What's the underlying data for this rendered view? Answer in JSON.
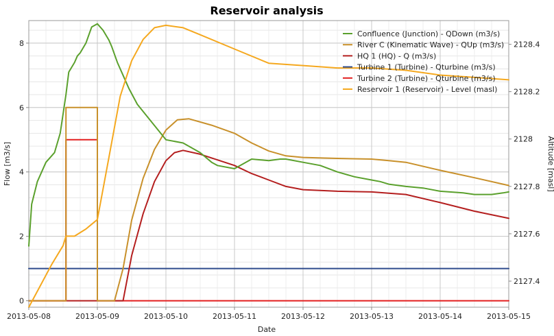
{
  "chart_data": {
    "type": "line",
    "title": "Reservoir analysis",
    "xlabel": "Date",
    "ylabel_left": "Flow [m3/s]",
    "ylabel_right": "Altitude [masl]",
    "x_ticks": [
      "2013-05-08",
      "2013-05-09",
      "2013-05-10",
      "2013-05-11",
      "2013-05-12",
      "2013-05-13",
      "2013-05-14",
      "2013-05-15"
    ],
    "x_range": [
      "2013-05-08",
      "2013-05-15"
    ],
    "y_left": {
      "min": -0.2,
      "max": 8.7,
      "ticks": [
        0,
        2,
        4,
        6,
        8
      ],
      "tick_labels": [
        "0",
        "2",
        "4",
        "6",
        "8"
      ]
    },
    "y_right": {
      "min": 2127.29,
      "max": 2128.5,
      "ticks": [
        2127.4,
        2127.6,
        2127.8,
        2128.0,
        2128.2,
        2128.4
      ],
      "tick_labels": [
        "2127.4",
        "2127.6",
        "2127.8",
        "2128",
        "2128.2",
        "2128.4"
      ]
    },
    "grid": true,
    "legend_position": "top-right",
    "series": [
      {
        "name": "Confluence (Junction) - QDown (m3/s)",
        "color": "#5aa02c",
        "axis": "left",
        "x": [
          "2013-05-08 00:00",
          "2013-05-08 01:00",
          "2013-05-08 03:00",
          "2013-05-08 06:00",
          "2013-05-08 08:00",
          "2013-05-08 09:00",
          "2013-05-08 11:00",
          "2013-05-08 13:00",
          "2013-05-08 14:00",
          "2013-05-08 16:00",
          "2013-05-08 17:00",
          "2013-05-08 18:00",
          "2013-05-08 20:00",
          "2013-05-08 22:00",
          "2013-05-09 00:00",
          "2013-05-09 02:00",
          "2013-05-09 04:00",
          "2013-05-09 05:00",
          "2013-05-09 07:00",
          "2013-05-09 09:00",
          "2013-05-09 11:00",
          "2013-05-09 14:00",
          "2013-05-10 00:00",
          "2013-05-10 06:00",
          "2013-05-10 12:00",
          "2013-05-10 16:00",
          "2013-05-10 18:00",
          "2013-05-11 00:00",
          "2013-05-11 06:00",
          "2013-05-11 12:00",
          "2013-05-11 16:00",
          "2013-05-11 18:00",
          "2013-05-12 00:00",
          "2013-05-12 06:00",
          "2013-05-12 12:00",
          "2013-05-12 18:00",
          "2013-05-13 00:00",
          "2013-05-13 03:00",
          "2013-05-13 06:00",
          "2013-05-13 12:00",
          "2013-05-13 18:00",
          "2013-05-14 00:00",
          "2013-05-14 08:00",
          "2013-05-14 12:00",
          "2013-05-14 18:00",
          "2013-05-14 22:00",
          "2013-05-15 00:00"
        ],
        "y": [
          1.7,
          3.0,
          3.7,
          4.3,
          4.5,
          4.6,
          5.2,
          6.4,
          7.1,
          7.4,
          7.6,
          7.7,
          8.0,
          8.5,
          8.6,
          8.4,
          8.1,
          7.9,
          7.4,
          7.0,
          6.6,
          6.1,
          5.0,
          4.9,
          4.6,
          4.3,
          4.2,
          4.1,
          4.4,
          4.35,
          4.4,
          4.4,
          4.3,
          4.2,
          4.0,
          3.85,
          3.75,
          3.7,
          3.62,
          3.55,
          3.5,
          3.4,
          3.35,
          3.3,
          3.3,
          3.35,
          3.38
        ]
      },
      {
        "name": "River C (Kinematic Wave) - QUp (m3/s)",
        "color": "#c8902a",
        "axis": "left",
        "x": [
          "2013-05-08 00:00",
          "2013-05-08 13:00",
          "2013-05-08 13:00",
          "2013-05-09 00:00",
          "2013-05-09 00:00",
          "2013-05-09 06:00",
          "2013-05-09 09:00",
          "2013-05-09 12:00",
          "2013-05-09 16:00",
          "2013-05-09 20:00",
          "2013-05-10 00:00",
          "2013-05-10 04:00",
          "2013-05-10 08:00",
          "2013-05-10 16:00",
          "2013-05-11 00:00",
          "2013-05-11 06:00",
          "2013-05-11 12:00",
          "2013-05-11 18:00",
          "2013-05-12 00:00",
          "2013-05-12 12:00",
          "2013-05-13 00:00",
          "2013-05-13 06:00",
          "2013-05-13 12:00",
          "2013-05-14 00:00",
          "2013-05-14 12:00",
          "2013-05-15 00:00"
        ],
        "y": [
          0,
          0,
          6.0,
          6.0,
          0,
          0,
          1.0,
          2.5,
          3.8,
          4.7,
          5.3,
          5.62,
          5.65,
          5.45,
          5.2,
          4.9,
          4.65,
          4.5,
          4.45,
          4.42,
          4.4,
          4.35,
          4.3,
          4.05,
          3.82,
          3.58
        ]
      },
      {
        "name": "HQ 1 (HQ) - Q (m3/s)",
        "color": "#b41e1e",
        "axis": "left",
        "x": [
          "2013-05-08 00:00",
          "2013-05-09 09:00",
          "2013-05-09 12:00",
          "2013-05-09 16:00",
          "2013-05-09 20:00",
          "2013-05-10 00:00",
          "2013-05-10 03:00",
          "2013-05-10 06:00",
          "2013-05-10 12:00",
          "2013-05-11 00:00",
          "2013-05-11 06:00",
          "2013-05-11 12:00",
          "2013-05-11 18:00",
          "2013-05-12 00:00",
          "2013-05-12 12:00",
          "2013-05-13 00:00",
          "2013-05-13 12:00",
          "2013-05-14 00:00",
          "2013-05-14 12:00",
          "2013-05-15 00:00"
        ],
        "y": [
          0,
          0,
          1.4,
          2.7,
          3.7,
          4.35,
          4.6,
          4.67,
          4.55,
          4.2,
          3.95,
          3.75,
          3.55,
          3.45,
          3.4,
          3.38,
          3.3,
          3.05,
          2.78,
          2.56
        ]
      },
      {
        "name": "Turbine 1 (Turbine) - Qturbine (m3/s)",
        "color": "#2e4b8c",
        "axis": "left",
        "x": [
          "2013-05-08 00:00",
          "2013-05-15 00:00"
        ],
        "y": [
          1.0,
          1.0
        ]
      },
      {
        "name": "Turbine 2 (Turbine) - Qturbine (m3/s)",
        "color": "#e31e1e",
        "axis": "left",
        "x": [
          "2013-05-08 00:00",
          "2013-05-08 13:00",
          "2013-05-08 13:00",
          "2013-05-09 00:00",
          "2013-05-09 00:00",
          "2013-05-15 00:00"
        ],
        "y": [
          0,
          0,
          5.0,
          5.0,
          0,
          0
        ]
      },
      {
        "name": "Reservoir 1 (Reservoir) - Level (masl)",
        "color": "#f5a81e",
        "axis": "right",
        "x": [
          "2013-05-08 00:00",
          "2013-05-08 04:00",
          "2013-05-08 08:00",
          "2013-05-08 12:00",
          "2013-05-08 13:00",
          "2013-05-08 16:00",
          "2013-05-08 20:00",
          "2013-05-09 00:00",
          "2013-05-09 04:00",
          "2013-05-09 08:00",
          "2013-05-09 12:00",
          "2013-05-09 16:00",
          "2013-05-09 20:00",
          "2013-05-10 00:00",
          "2013-05-10 06:00",
          "2013-05-10 12:00",
          "2013-05-11 00:00",
          "2013-05-11 12:00",
          "2013-05-12 00:00",
          "2013-05-12 12:00",
          "2013-05-13 00:00",
          "2013-05-13 12:00",
          "2013-05-14 00:00",
          "2013-05-14 12:00",
          "2013-05-15 00:00"
        ],
        "y": [
          2127.29,
          2127.38,
          2127.47,
          2127.55,
          2127.59,
          2127.59,
          2127.62,
          2127.66,
          2127.92,
          2128.18,
          2128.33,
          2128.42,
          2128.47,
          2128.48,
          2128.47,
          2128.44,
          2128.38,
          2128.32,
          2128.31,
          2128.3,
          2128.3,
          2128.29,
          2128.27,
          2128.26,
          2128.25
        ]
      }
    ]
  }
}
